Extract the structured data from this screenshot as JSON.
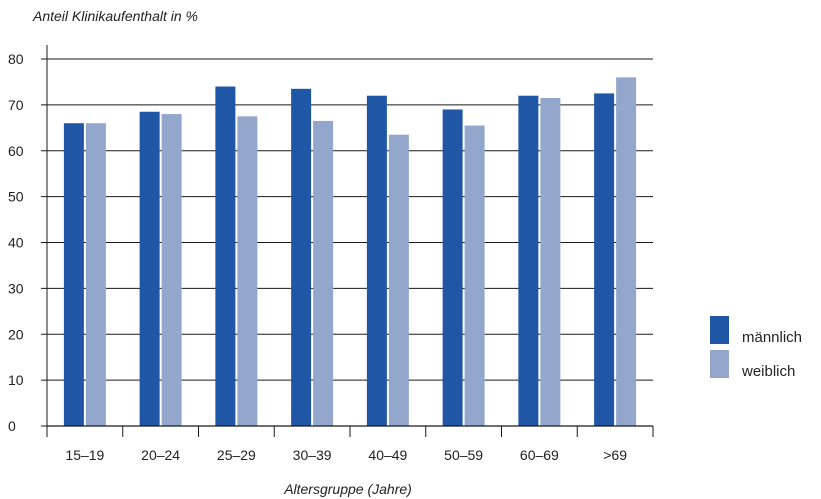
{
  "chart_data": {
    "type": "bar",
    "ylabel": "Anteil Klinikaufenthalt in %",
    "xlabel": "Altersgruppe (Jahre)",
    "categories": [
      "15–19",
      "20–24",
      "25–29",
      "30–39",
      "40–49",
      "50–59",
      "60–69",
      ">69"
    ],
    "ylim": [
      0,
      80
    ],
    "yticks": [
      0,
      10,
      20,
      30,
      40,
      50,
      60,
      70,
      80
    ],
    "grid": true,
    "legend_position": "right",
    "series": [
      {
        "name": "männlich",
        "color": "#1f56a5",
        "values": [
          66,
          68.5,
          74,
          73.5,
          72,
          69,
          72,
          72.5
        ]
      },
      {
        "name": "weiblich",
        "color": "#93a7cc",
        "values": [
          66,
          68,
          67.5,
          66.5,
          63.5,
          65.5,
          71.5,
          76
        ]
      }
    ]
  }
}
